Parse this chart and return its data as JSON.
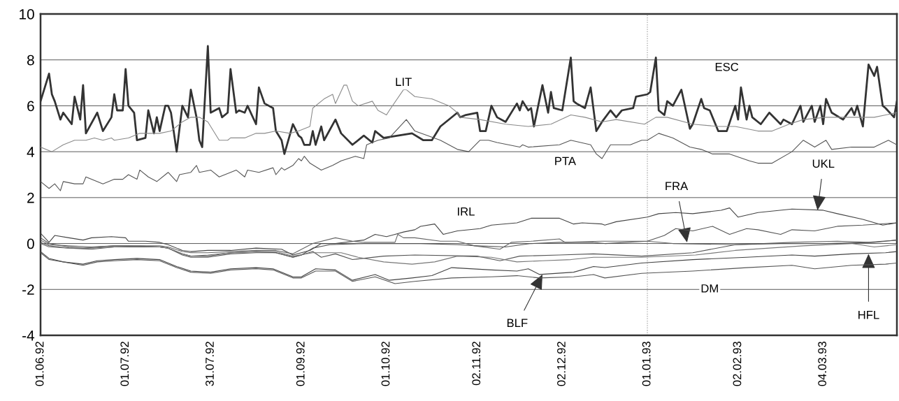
{
  "chart_data": {
    "type": "line",
    "xlim": [
      "1992-06-01",
      "1993-03-30"
    ],
    "xticks": [
      {
        "value": "1992-06-01",
        "label": "01.06.92"
      },
      {
        "value": "1992-07-01",
        "label": "01.07.92"
      },
      {
        "value": "1992-07-31",
        "label": "31.07.92"
      },
      {
        "value": "1992-09-01",
        "label": "01.09.92"
      },
      {
        "value": "1992-10-01",
        "label": "01.10.92"
      },
      {
        "value": "1992-11-02",
        "label": "02.11.92"
      },
      {
        "value": "1992-12-02",
        "label": "02.12.92"
      },
      {
        "value": "1993-01-01",
        "label": "01.01.93"
      },
      {
        "value": "1993-02-02",
        "label": "02.02.93"
      },
      {
        "value": "1993-03-04",
        "label": "04.03.93"
      }
    ],
    "ylim": [
      -4,
      10
    ],
    "yticks": [
      -4,
      -2,
      0,
      2,
      4,
      6,
      8,
      10
    ],
    "grid": "y",
    "legend": false,
    "marker": "none",
    "line_style": "solid",
    "ref_lines": [
      {
        "axis": "x",
        "value": "1993-01-01",
        "color": "#9a9a9a",
        "line_style": "dotted"
      }
    ],
    "annotations": [
      {
        "text": "LIT",
        "x": "1992-10-07",
        "y": 7.0
      },
      {
        "text": "ESC",
        "x": "1993-01-29",
        "y": 7.65
      },
      {
        "text": "PTA",
        "x": "1992-12-03",
        "y": 3.55
      },
      {
        "text": "IRL",
        "x": "1992-10-29",
        "y": 1.35
      },
      {
        "text": "UKL",
        "x": "1993-03-02",
        "y": 1.45
      },
      {
        "text": "FRA",
        "x": "1993-01-15",
        "y": 0.05
      },
      {
        "text": "DM",
        "x": "1993-01-23",
        "y": -2.0
      },
      {
        "text": "BLF",
        "x": "1992-11-25",
        "y": -1.35
      },
      {
        "text": "HFL",
        "x": "1993-03-20",
        "y": -0.45
      }
    ],
    "series": [
      {
        "color": "#333333",
        "x": [
          "1992-06-01",
          "1992-06-04",
          "1992-06-05",
          "1992-06-06",
          "1992-06-08",
          "1992-06-09",
          "1992-06-12",
          "1992-06-13",
          "1992-06-15",
          "1992-06-16",
          "1992-06-17",
          "1992-06-21",
          "1992-06-23",
          "1992-06-26",
          "1992-06-27",
          "1992-06-28",
          "1992-06-30",
          "1992-07-01",
          "1992-07-02",
          "1992-07-04",
          "1992-07-05",
          "1992-07-08",
          "1992-07-09",
          "1992-07-11",
          "1992-07-12",
          "1992-07-13",
          "1992-07-15",
          "1992-07-16",
          "1992-07-17",
          "1992-07-19",
          "1992-07-21",
          "1992-07-23",
          "1992-07-24",
          "1992-07-26",
          "1992-07-27",
          "1992-07-28",
          "1992-07-30",
          "1992-07-31",
          "1992-08-03",
          "1992-08-04",
          "1992-08-06",
          "1992-08-07",
          "1992-08-09",
          "1992-08-10",
          "1992-08-12",
          "1992-08-13",
          "1992-08-16",
          "1992-08-17",
          "1992-08-19",
          "1992-08-22",
          "1992-08-23",
          "1992-08-25",
          "1992-08-26",
          "1992-08-29",
          "1992-08-31",
          "1992-09-01",
          "1992-09-02",
          "1992-09-04",
          "1992-09-05",
          "1992-09-06",
          "1992-09-08",
          "1992-09-09",
          "1992-09-13",
          "1992-09-15",
          "1992-09-19",
          "1992-09-23",
          "1992-09-26",
          "1992-09-27",
          "1992-09-30",
          "1992-10-05",
          "1992-10-10",
          "1992-10-14",
          "1992-10-17",
          "1992-10-20",
          "1992-10-21",
          "1992-10-26",
          "1992-10-27",
          "1992-10-29",
          "1992-11-02",
          "1992-11-03",
          "1992-11-05",
          "1992-11-07",
          "1992-11-09",
          "1992-11-12",
          "1992-11-16",
          "1992-11-17",
          "1992-11-18",
          "1992-11-20",
          "1992-11-21",
          "1992-11-22",
          "1992-11-25",
          "1992-11-27",
          "1992-11-28",
          "1992-11-29",
          "1992-12-02",
          "1992-12-05",
          "1992-12-06",
          "1992-12-07",
          "1992-12-10",
          "1992-12-12",
          "1992-12-14",
          "1992-12-16",
          "1992-12-19",
          "1992-12-21",
          "1992-12-23",
          "1992-12-27",
          "1992-12-28",
          "1993-01-01",
          "1993-01-02",
          "1993-01-04",
          "1993-01-05",
          "1993-01-07",
          "1993-01-08",
          "1993-01-10",
          "1993-01-13",
          "1993-01-16",
          "1993-01-17",
          "1993-01-20",
          "1993-01-21",
          "1993-01-23",
          "1993-01-26",
          "1993-01-29",
          "1993-02-01",
          "1993-02-02",
          "1993-02-03",
          "1993-02-05",
          "1993-02-06",
          "1993-02-07",
          "1993-02-10",
          "1993-02-13",
          "1993-02-17",
          "1993-02-18",
          "1993-02-21",
          "1993-02-24",
          "1993-02-25",
          "1993-02-28",
          "1993-03-01",
          "1993-03-03",
          "1993-03-04",
          "1993-03-05",
          "1993-03-07",
          "1993-03-11",
          "1993-03-14",
          "1993-03-15",
          "1993-03-16",
          "1993-03-18",
          "1993-03-20",
          "1993-03-22",
          "1993-03-23",
          "1993-03-25",
          "1993-03-26",
          "1993-03-29",
          "1993-03-30"
        ],
        "values": [
          6.2,
          7.4,
          6.5,
          6.2,
          5.4,
          5.7,
          5.2,
          6.4,
          5.4,
          6.9,
          4.8,
          5.7,
          4.9,
          5.5,
          6.5,
          5.8,
          5.8,
          7.6,
          6.0,
          5.7,
          4.5,
          4.6,
          5.8,
          4.8,
          5.5,
          4.9,
          6.0,
          6.0,
          5.7,
          4.0,
          6.0,
          5.5,
          6.7,
          5.5,
          4.5,
          4.2,
          8.6,
          5.7,
          5.9,
          5.5,
          5.7,
          7.6,
          5.7,
          5.8,
          5.7,
          6.0,
          5.2,
          6.8,
          6.1,
          5.9,
          4.9,
          4.5,
          3.9,
          5.2,
          4.7,
          4.6,
          4.3,
          4.3,
          4.9,
          4.3,
          5.1,
          4.5,
          5.4,
          4.8,
          4.3,
          4.7,
          4.4,
          4.9,
          4.6,
          4.7,
          4.8,
          4.5,
          4.5,
          5.1,
          5.2,
          5.7,
          5.5,
          5.6,
          5.7,
          4.9,
          4.9,
          6.0,
          5.5,
          5.3,
          6.1,
          5.8,
          6.2,
          5.8,
          5.9,
          5.1,
          6.9,
          5.7,
          6.6,
          5.9,
          5.8,
          8.1,
          6.2,
          6.1,
          5.9,
          6.8,
          4.9,
          5.3,
          5.8,
          5.5,
          5.8,
          5.9,
          6.4,
          6.5,
          6.6,
          8.1,
          5.8,
          5.6,
          6.2,
          6.0,
          6.7,
          5.0,
          5.2,
          6.3,
          5.9,
          5.8,
          4.9,
          4.9,
          6.0,
          5.4,
          6.8,
          5.4,
          6.0,
          5.5,
          5.2,
          5.7,
          5.2,
          5.4,
          5.2,
          6.0,
          5.3,
          6.0,
          5.3,
          6.0,
          5.2,
          6.3,
          5.7,
          5.4,
          5.9,
          5.6,
          6.0,
          5.1,
          7.8,
          7.3,
          7.7,
          6.0,
          5.9,
          5.5,
          6.2
        ]
      },
      {
        "color": "#8a8a8a",
        "x": [
          "1992-06-01",
          "1992-06-05",
          "1992-06-09",
          "1992-06-13",
          "1992-06-17",
          "1992-06-20",
          "1992-06-23",
          "1992-06-26",
          "1992-06-27",
          "1992-07-02",
          "1992-07-06",
          "1992-07-13",
          "1992-07-17",
          "1992-07-21",
          "1992-07-24",
          "1992-07-27",
          "1992-07-30",
          "1992-08-03",
          "1992-08-06",
          "1992-08-07",
          "1992-08-12",
          "1992-08-16",
          "1992-08-19",
          "1992-08-23",
          "1992-08-28",
          "1992-08-31",
          "1992-09-04",
          "1992-09-05",
          "1992-09-09",
          "1992-09-12",
          "1992-09-13",
          "1992-09-16",
          "1992-09-17",
          "1992-09-19",
          "1992-09-21",
          "1992-09-26",
          "1992-09-28",
          "1992-10-01",
          "1992-10-02",
          "1992-10-07",
          "1992-10-08",
          "1992-10-11",
          "1992-10-17",
          "1992-10-23",
          "1992-10-26",
          "1992-10-27",
          "1992-11-03",
          "1992-11-12",
          "1992-11-20",
          "1992-11-28",
          "1992-12-05",
          "1992-12-10",
          "1992-12-16",
          "1992-12-21",
          "1992-12-31",
          "1993-01-04",
          "1993-01-08",
          "1993-01-17",
          "1993-01-26",
          "1993-02-01",
          "1993-02-09",
          "1993-02-14",
          "1993-02-20",
          "1993-02-25",
          "1993-03-05",
          "1993-03-14",
          "1993-03-22",
          "1993-03-30"
        ],
        "values": [
          4.2,
          4.0,
          4.3,
          4.5,
          4.5,
          4.6,
          4.5,
          4.6,
          4.5,
          4.6,
          4.8,
          4.8,
          4.9,
          5.3,
          5.5,
          5.5,
          5.3,
          4.5,
          4.5,
          4.6,
          4.6,
          4.8,
          4.8,
          4.9,
          4.8,
          4.9,
          5.1,
          5.9,
          6.3,
          6.5,
          6.1,
          6.9,
          6.9,
          6.2,
          6.0,
          6.2,
          5.8,
          5.6,
          5.8,
          6.7,
          6.7,
          6.4,
          6.3,
          6.0,
          5.7,
          5.5,
          5.4,
          5.2,
          5.1,
          5.2,
          5.6,
          5.5,
          5.3,
          5.4,
          5.2,
          5.5,
          5.5,
          5.2,
          5.1,
          5.1,
          4.9,
          4.9,
          5.2,
          5.4,
          5.5,
          5.5,
          5.5,
          5.7
        ]
      },
      {
        "color": "#555555",
        "x": [
          "1992-06-01",
          "1992-06-04",
          "1992-06-06",
          "1992-06-08",
          "1992-06-09",
          "1992-06-13",
          "1992-06-16",
          "1992-06-17",
          "1992-06-23",
          "1992-06-27",
          "1992-06-30",
          "1992-07-02",
          "1992-07-05",
          "1992-07-06",
          "1992-07-09",
          "1992-07-12",
          "1992-07-16",
          "1992-07-19",
          "1992-07-20",
          "1992-07-24",
          "1992-07-26",
          "1992-07-27",
          "1992-07-31",
          "1992-08-03",
          "1992-08-07",
          "1992-08-09",
          "1992-08-12",
          "1992-08-13",
          "1992-08-17",
          "1992-08-22",
          "1992-08-23",
          "1992-08-25",
          "1992-08-26",
          "1992-08-29",
          "1992-08-31",
          "1992-09-01",
          "1992-09-02",
          "1992-09-04",
          "1992-09-08",
          "1992-09-12",
          "1992-09-15",
          "1992-09-20",
          "1992-09-23",
          "1992-09-24",
          "1992-09-28",
          "1992-10-02",
          "1992-10-08",
          "1992-10-11",
          "1992-10-20",
          "1992-10-26",
          "1992-10-30",
          "1992-11-03",
          "1992-11-06",
          "1992-11-09",
          "1992-11-17",
          "1992-11-18",
          "1992-11-20",
          "1992-12-01",
          "1992-12-05",
          "1992-12-12",
          "1992-12-14",
          "1992-12-16",
          "1992-12-19",
          "1992-12-26",
          "1992-12-30",
          "1993-01-01",
          "1993-01-05",
          "1993-01-10",
          "1993-01-16",
          "1993-01-20",
          "1993-01-24",
          "1993-01-30",
          "1993-02-06",
          "1993-02-09",
          "1993-02-14",
          "1993-02-21",
          "1993-02-25",
          "1993-03-01",
          "1993-03-05",
          "1993-03-07",
          "1993-03-14",
          "1993-03-22",
          "1993-03-27",
          "1993-03-30"
        ],
        "values": [
          2.7,
          2.4,
          2.6,
          2.3,
          2.7,
          2.6,
          2.6,
          2.9,
          2.6,
          2.8,
          2.8,
          3.0,
          2.8,
          3.2,
          2.9,
          2.7,
          3.1,
          2.7,
          3.0,
          3.1,
          3.4,
          3.1,
          3.2,
          2.9,
          3.1,
          3.2,
          2.9,
          3.2,
          3.1,
          3.3,
          3.0,
          3.3,
          3.2,
          3.4,
          3.7,
          3.6,
          3.8,
          3.5,
          3.2,
          3.4,
          3.6,
          3.8,
          3.7,
          4.3,
          4.5,
          4.6,
          5.4,
          4.9,
          4.5,
          4.1,
          4.0,
          4.5,
          4.5,
          4.4,
          4.2,
          4.3,
          4.2,
          4.3,
          4.5,
          4.3,
          3.9,
          3.7,
          4.3,
          4.3,
          4.5,
          4.5,
          4.8,
          4.6,
          4.2,
          4.1,
          3.9,
          3.9,
          3.6,
          3.5,
          3.5,
          4.0,
          4.5,
          4.2,
          4.5,
          4.1,
          4.2,
          4.2,
          4.5,
          4.3
        ]
      },
      {
        "color": "#444444",
        "x": [
          "1992-06-01",
          "1992-06-04",
          "1992-06-06",
          "1992-06-11",
          "1992-06-16",
          "1992-06-19",
          "1992-06-26",
          "1992-07-01",
          "1992-07-02",
          "1992-07-08",
          "1992-07-13",
          "1992-07-16",
          "1992-07-21",
          "1992-07-24",
          "1992-07-30",
          "1992-08-07",
          "1992-08-16",
          "1992-08-25",
          "1992-08-29",
          "1992-09-04",
          "1992-09-08",
          "1992-09-13",
          "1992-09-23",
          "1992-09-27",
          "1992-10-01",
          "1992-10-04",
          "1992-10-07",
          "1992-10-11",
          "1992-10-13",
          "1992-10-18",
          "1992-10-21",
          "1992-10-26",
          "1992-11-03",
          "1992-11-07",
          "1992-11-16",
          "1992-11-21",
          "1992-12-01",
          "1992-12-06",
          "1992-12-09",
          "1992-12-16",
          "1992-12-17",
          "1992-12-21",
          "1993-01-01",
          "1993-01-05",
          "1993-01-11",
          "1993-01-17",
          "1993-01-27",
          "1993-01-30",
          "1993-02-02",
          "1993-02-09",
          "1993-02-21",
          "1993-03-04",
          "1993-03-09",
          "1993-03-18",
          "1993-03-25",
          "1993-03-30"
        ],
        "values": [
          0.45,
          0.05,
          0.35,
          0.25,
          0.15,
          0.25,
          0.3,
          0.25,
          0.1,
          0.1,
          0.05,
          -0.05,
          -0.3,
          -0.35,
          -0.3,
          -0.3,
          -0.2,
          -0.25,
          -0.5,
          -0.3,
          0,
          0,
          0.15,
          0.4,
          0.3,
          0.4,
          0.5,
          0.6,
          0.75,
          0.85,
          0.4,
          0.55,
          0.65,
          0.8,
          0.9,
          1.1,
          1.1,
          0.85,
          0.9,
          0.85,
          0.8,
          0.95,
          1.15,
          1.3,
          1.35,
          1.3,
          1.45,
          1.55,
          1.15,
          1.35,
          1.5,
          1.45,
          1.3,
          1.05,
          0.8,
          0.9
        ]
      },
      {
        "color": "#555555",
        "x": [
          "1992-06-01",
          "1992-06-04",
          "1992-06-11",
          "1992-06-16",
          "1992-06-27",
          "1992-07-05",
          "1992-07-13",
          "1992-07-16",
          "1992-07-21",
          "1992-07-24",
          "1992-07-30",
          "1992-08-07",
          "1992-08-16",
          "1992-08-23",
          "1992-08-29",
          "1992-09-01",
          "1992-09-05",
          "1992-09-11",
          "1992-09-23",
          "1992-10-13",
          "1992-10-26",
          "1992-11-02",
          "1992-11-12",
          "1992-11-21",
          "1992-12-01",
          "1992-12-13",
          "1992-12-17",
          "1993-01-01",
          "1993-01-07",
          "1993-01-11",
          "1993-01-17",
          "1993-01-24",
          "1993-01-30",
          "1993-02-05",
          "1993-02-09",
          "1993-02-17",
          "1993-02-21",
          "1993-03-01",
          "1993-03-09",
          "1993-03-18",
          "1993-03-30"
        ],
        "values": [
          0.25,
          0,
          -0.15,
          -0.2,
          -0.1,
          -0.1,
          -0.15,
          -0.2,
          -0.45,
          -0.55,
          -0.55,
          -0.4,
          -0.35,
          -0.4,
          -0.6,
          -0.5,
          -0.2,
          -0.05,
          0,
          0,
          -0.05,
          -0.1,
          -0.15,
          0,
          0.05,
          0.05,
          0,
          0.1,
          0.35,
          0.65,
          0.55,
          0.75,
          0.4,
          0.65,
          0.6,
          0.4,
          0.6,
          0.55,
          0.75,
          0.8,
          0.9
        ]
      },
      {
        "color": "#666666",
        "x": [
          "1992-06-01",
          "1992-06-04",
          "1992-06-11",
          "1992-06-19",
          "1992-06-27",
          "1992-07-05",
          "1992-07-13",
          "1992-07-16",
          "1992-07-21",
          "1992-07-24",
          "1992-07-30",
          "1992-08-07",
          "1992-08-16",
          "1992-08-23",
          "1992-08-29",
          "1992-09-05",
          "1992-09-13",
          "1992-09-19",
          "1992-09-23",
          "1992-10-04",
          "1992-10-05",
          "1992-10-07",
          "1992-10-11",
          "1992-10-20",
          "1992-10-26",
          "1992-11-01",
          "1992-11-10",
          "1992-11-14",
          "1992-11-21",
          "1992-12-01",
          "1992-12-03",
          "1992-12-16",
          "1993-01-01",
          "1993-01-10",
          "1993-02-01",
          "1993-02-21",
          "1993-03-09",
          "1993-03-20",
          "1993-03-30"
        ],
        "values": [
          0.15,
          -0.05,
          -0.1,
          -0.15,
          -0.1,
          -0.1,
          -0.1,
          -0.15,
          -0.35,
          -0.4,
          -0.4,
          -0.35,
          -0.3,
          -0.3,
          -0.45,
          0,
          0.25,
          0.1,
          0.05,
          0.05,
          0.4,
          0.25,
          0.25,
          0.1,
          0.1,
          -0.1,
          -0.25,
          0.05,
          0.1,
          0.2,
          0.05,
          0.1,
          0.1,
          0,
          -0.05,
          0.05,
          0.1,
          0.05,
          0.15
        ]
      },
      {
        "color": "#555555",
        "x": [
          "1992-06-01",
          "1992-06-04",
          "1992-06-11",
          "1992-06-19",
          "1992-06-27",
          "1992-07-05",
          "1992-07-13",
          "1992-07-16",
          "1992-07-21",
          "1992-07-24",
          "1992-07-30",
          "1992-08-07",
          "1992-08-16",
          "1992-08-23",
          "1992-08-29",
          "1992-09-01",
          "1992-09-05",
          "1992-09-08",
          "1992-09-13",
          "1992-09-19",
          "1992-09-30",
          "1992-10-11",
          "1992-11-02",
          "1992-11-10",
          "1992-11-17",
          "1992-12-01",
          "1992-12-13",
          "1992-12-30",
          "1993-01-17",
          "1993-02-01",
          "1993-02-17",
          "1993-03-05",
          "1993-03-22",
          "1993-03-30"
        ],
        "values": [
          0.05,
          -0.1,
          -0.2,
          -0.25,
          -0.15,
          -0.15,
          -0.15,
          -0.2,
          -0.5,
          -0.6,
          -0.6,
          -0.45,
          -0.4,
          -0.4,
          -0.6,
          -0.5,
          -0.35,
          -0.6,
          -0.45,
          -0.7,
          -0.55,
          -0.5,
          -0.55,
          -0.75,
          -0.55,
          -0.5,
          -0.45,
          -0.55,
          -0.4,
          -0.05,
          0,
          0,
          0.05,
          0.15
        ]
      },
      {
        "color": "#777777",
        "x": [
          "1992-06-01",
          "1992-06-04",
          "1992-06-11",
          "1992-06-19",
          "1992-06-27",
          "1992-07-05",
          "1992-07-13",
          "1992-07-16",
          "1992-07-21",
          "1992-07-24",
          "1992-07-30",
          "1992-08-07",
          "1992-08-16",
          "1992-08-23",
          "1992-08-29",
          "1992-09-05",
          "1992-09-15",
          "1992-09-21",
          "1992-09-30",
          "1992-10-10",
          "1992-10-18",
          "1992-10-26",
          "1992-11-07",
          "1992-11-16",
          "1992-11-25",
          "1992-12-05",
          "1992-12-13",
          "1992-12-30",
          "1993-01-18",
          "1993-02-01",
          "1993-02-25",
          "1993-03-14",
          "1993-03-22",
          "1993-03-30"
        ],
        "values": [
          0,
          -0.15,
          -0.2,
          -0.2,
          -0.15,
          -0.1,
          -0.15,
          -0.2,
          -0.45,
          -0.55,
          -0.5,
          -0.4,
          -0.35,
          -0.35,
          -0.55,
          -0.4,
          -0.4,
          -0.6,
          -0.8,
          -0.9,
          -0.8,
          -0.55,
          -0.6,
          -0.8,
          -0.75,
          -0.7,
          -0.6,
          -0.6,
          -0.5,
          -0.3,
          -0.1,
          0,
          -0.15,
          -0.05
        ]
      },
      {
        "color": "#444444",
        "x": [
          "1992-06-01",
          "1992-06-04",
          "1992-06-09",
          "1992-06-16",
          "1992-06-21",
          "1992-06-27",
          "1992-07-05",
          "1992-07-13",
          "1992-07-19",
          "1992-07-24",
          "1992-07-31",
          "1992-08-07",
          "1992-08-16",
          "1992-08-22",
          "1992-08-29",
          "1992-09-01",
          "1992-09-06",
          "1992-09-13",
          "1992-09-19",
          "1992-09-27",
          "1992-10-02",
          "1992-10-10",
          "1992-10-17",
          "1992-10-24",
          "1992-11-07",
          "1992-11-16",
          "1992-11-20",
          "1992-11-24",
          "1992-12-06",
          "1992-12-13",
          "1992-12-17",
          "1992-12-30",
          "1993-01-17",
          "1993-02-05",
          "1993-02-21",
          "1993-03-01",
          "1993-03-14",
          "1993-03-26",
          "1993-03-30"
        ],
        "values": [
          -0.35,
          -0.65,
          -0.8,
          -0.9,
          -0.75,
          -0.7,
          -0.65,
          -0.7,
          -1.0,
          -1.2,
          -1.25,
          -1.1,
          -1.05,
          -1.1,
          -1.45,
          -1.45,
          -1.1,
          -1.15,
          -1.6,
          -1.35,
          -1.6,
          -1.5,
          -1.4,
          -1.05,
          -1.15,
          -1.2,
          -1.1,
          -1.35,
          -1.25,
          -1.0,
          -1.05,
          -0.85,
          -0.7,
          -0.6,
          -0.5,
          -0.55,
          -0.45,
          -0.4,
          -0.35
        ]
      },
      {
        "color": "#555555",
        "x": [
          "1992-06-01",
          "1992-06-04",
          "1992-06-09",
          "1992-06-16",
          "1992-06-21",
          "1992-06-27",
          "1992-07-05",
          "1992-07-13",
          "1992-07-19",
          "1992-07-24",
          "1992-07-31",
          "1992-08-07",
          "1992-08-16",
          "1992-08-22",
          "1992-08-29",
          "1992-09-01",
          "1992-09-06",
          "1992-09-13",
          "1992-09-19",
          "1992-09-27",
          "1992-10-04",
          "1992-10-11",
          "1992-10-24",
          "1992-11-07",
          "1992-11-16",
          "1992-11-24",
          "1992-12-06",
          "1992-12-13",
          "1992-12-17",
          "1992-12-30",
          "1993-01-17",
          "1993-02-05",
          "1993-02-21",
          "1993-03-01",
          "1993-03-14",
          "1993-03-26",
          "1993-03-30"
        ],
        "values": [
          -0.4,
          -0.7,
          -0.8,
          -0.95,
          -0.8,
          -0.75,
          -0.7,
          -0.75,
          -1.05,
          -1.25,
          -1.3,
          -1.15,
          -1.1,
          -1.15,
          -1.5,
          -1.5,
          -1.2,
          -1.2,
          -1.65,
          -1.45,
          -1.75,
          -1.65,
          -1.5,
          -1.45,
          -1.4,
          -1.5,
          -1.45,
          -1.35,
          -1.5,
          -1.3,
          -1.2,
          -1.05,
          -0.95,
          -1.1,
          -0.95,
          -0.9,
          -0.85
        ]
      }
    ]
  }
}
